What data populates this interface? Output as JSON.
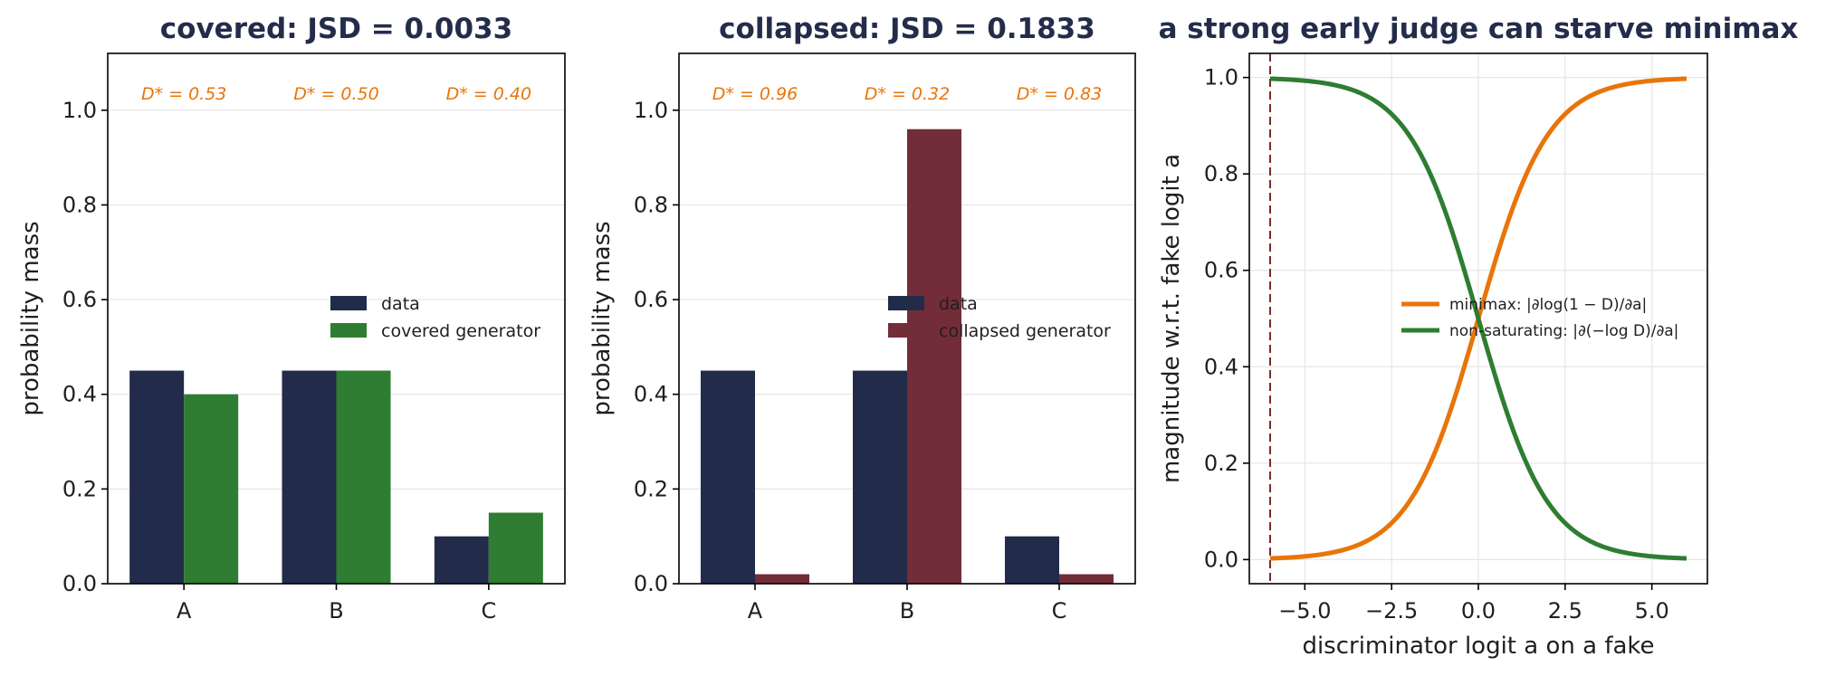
{
  "chart_data": [
    {
      "type": "bar",
      "title": "covered: JSD = 0.0033",
      "xlabel": "",
      "ylabel": "probability mass",
      "ylim": [
        0,
        1.12
      ],
      "yticks": [
        "0.0",
        "0.2",
        "0.4",
        "0.6",
        "0.8",
        "1.0"
      ],
      "categories": [
        "A",
        "B",
        "C"
      ],
      "series": [
        {
          "name": "data",
          "values": [
            0.45,
            0.45,
            0.1
          ],
          "color": "#232b4a"
        },
        {
          "name": "covered generator",
          "values": [
            0.4,
            0.45,
            0.15
          ],
          "color": "#2e7d32"
        }
      ],
      "annotations": [
        "D* = 0.53",
        "D* = 0.50",
        "D* = 0.40"
      ],
      "annotation_color": "#e8750a",
      "grid": "horizontal",
      "legend_position": "center-right"
    },
    {
      "type": "bar",
      "title": "collapsed: JSD = 0.1833",
      "xlabel": "",
      "ylabel": "probability mass",
      "ylim": [
        0,
        1.12
      ],
      "yticks": [
        "0.0",
        "0.2",
        "0.4",
        "0.6",
        "0.8",
        "1.0"
      ],
      "categories": [
        "A",
        "B",
        "C"
      ],
      "series": [
        {
          "name": "data",
          "values": [
            0.45,
            0.45,
            0.1
          ],
          "color": "#232b4a"
        },
        {
          "name": "collapsed generator",
          "values": [
            0.02,
            0.96,
            0.02
          ],
          "color": "#722d38"
        }
      ],
      "annotations": [
        "D* = 0.96",
        "D* = 0.32",
        "D* = 0.83"
      ],
      "annotation_color": "#e8750a",
      "grid": "horizontal",
      "legend_position": "center-right"
    },
    {
      "type": "line",
      "title": "a strong early judge can starve minimax",
      "xlabel": "discriminator logit a on a fake",
      "ylabel": "magnitude w.r.t. fake logit a",
      "xlim": [
        -6.6,
        6.6
      ],
      "ylim": [
        -0.05,
        1.05
      ],
      "xticks": [
        "−5.0",
        "−2.5",
        "0.0",
        "2.5",
        "5.0"
      ],
      "yticks": [
        "0.0",
        "0.2",
        "0.4",
        "0.6",
        "0.8",
        "1.0"
      ],
      "x": [
        -6,
        -5.5,
        -5,
        -4.5,
        -4,
        -3.5,
        -3,
        -2.5,
        -2,
        -1.5,
        -1,
        -0.5,
        0,
        0.5,
        1,
        1.5,
        2,
        2.5,
        3,
        3.5,
        4,
        4.5,
        5,
        5.5,
        6
      ],
      "series": [
        {
          "name": "minimax: |∂log(1 − D)/∂a|",
          "values": [
            0.002,
            0.004,
            0.007,
            0.011,
            0.018,
            0.029,
            0.047,
            0.076,
            0.119,
            0.182,
            0.269,
            0.378,
            0.5,
            0.622,
            0.731,
            0.818,
            0.881,
            0.924,
            0.953,
            0.971,
            0.982,
            0.989,
            0.993,
            0.996,
            0.998
          ],
          "color": "#e8750a"
        },
        {
          "name": "non-saturating: |∂(−log D)/∂a|",
          "values": [
            0.998,
            0.996,
            0.993,
            0.989,
            0.982,
            0.971,
            0.953,
            0.924,
            0.881,
            0.818,
            0.731,
            0.622,
            0.5,
            0.378,
            0.269,
            0.182,
            0.119,
            0.076,
            0.047,
            0.029,
            0.018,
            0.011,
            0.007,
            0.004,
            0.002
          ],
          "color": "#2e7d32"
        }
      ],
      "vline_x": -6,
      "vline_color": "#7a2a2a",
      "grid": "both",
      "legend_position": "center-right"
    }
  ]
}
